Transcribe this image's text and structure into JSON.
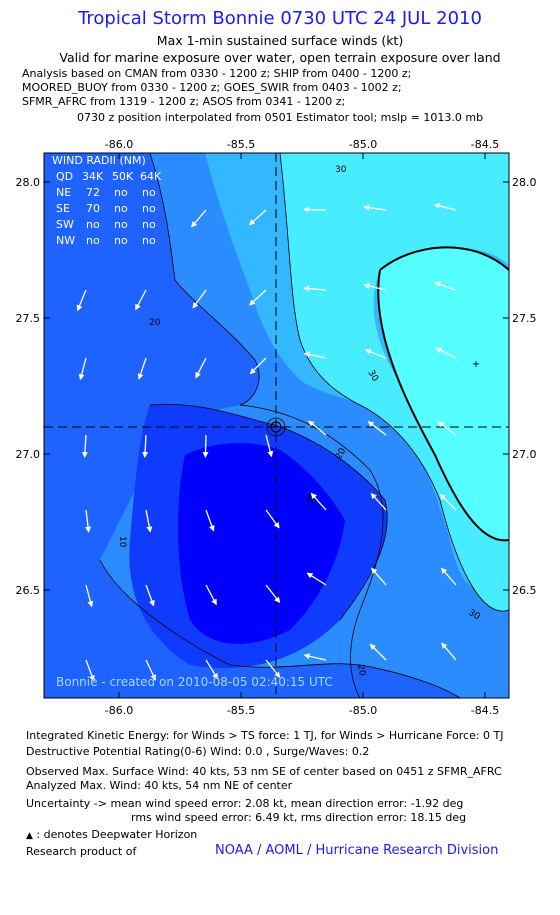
{
  "header": {
    "title": "Tropical Storm Bonnie 0730 UTC 24 JUL 2010",
    "subtitle": "Max 1-min sustained surface winds (kt)",
    "valid_line": "Valid for marine exposure over water, open terrain exposure over land",
    "analysis_lines": [
      "Analysis based on CMAN from 0330 - 1200 z; SHIP from 0400 - 1200 z;",
      "MOORED_BUOY from 0330 - 1200 z; GOES_SWIR from 0403 - 1002 z;",
      "SFMR_AFRC from 1319 - 1200 z; ASOS from 0341 - 1200 z;"
    ],
    "position_line": "0730 z position interpolated from 0501 Estimator tool; mslp = 1013.0 mb"
  },
  "map": {
    "x_ticks": [
      "-86.0",
      "-85.5",
      "-85.0",
      "-84.5"
    ],
    "y_ticks": [
      "28.0",
      "27.5",
      "27.0",
      "26.5"
    ],
    "contour_labels": [
      "30",
      "20",
      "30",
      "20",
      "10",
      "10",
      "20",
      "30"
    ],
    "wind_radii": {
      "title": "WIND RADII (NM)",
      "header": [
        "QD",
        "34K",
        "50K",
        "64K"
      ],
      "rows": [
        [
          "NE",
          "72",
          "no",
          "no"
        ],
        [
          "SE",
          "70",
          "no",
          "no"
        ],
        [
          "SW",
          "no",
          "no",
          "no"
        ],
        [
          "NW",
          "no",
          "no",
          "no"
        ]
      ]
    },
    "credit": "Bonnie - created on 2010-08-05 02:40:15 UTC",
    "colors": {
      "band_5": "#0000ff",
      "band_10": "#0f3bff",
      "band_15": "#1e62ff",
      "band_20": "#2a8cff",
      "band_25": "#33b8ff",
      "band_30": "#48ecff",
      "band_35": "#55ffff",
      "arrow": "#ffffff",
      "contour": "#000000"
    }
  },
  "footer": {
    "ike": "Integrated Kinetic Energy:  for Winds > TS force: 1 TJ,  for Winds > Hurricane Force: 0 TJ",
    "dpr": "Destructive Potential Rating(0-6)   Wind: 0.0 , Surge/Waves: 0.2",
    "obs_max": "Observed Max. Surface Wind: 40 kts, 53 nm SE of center based on 0451 z SFMR_AFRC",
    "ana_max": "Analyzed Max. Wind: 40 kts, 54 nm NE of center",
    "unc1": "Uncertainty -> mean wind speed error: 2.08 kt,   mean direction error:  -1.92 deg",
    "unc2": "rms wind speed error: 6.49 kt,   rms direction error: 18.15 deg",
    "deepwater": ": denotes Deepwater Horizon",
    "research": "Research product of",
    "noaa": "NOAA / AOML / Hurricane Research Division"
  }
}
